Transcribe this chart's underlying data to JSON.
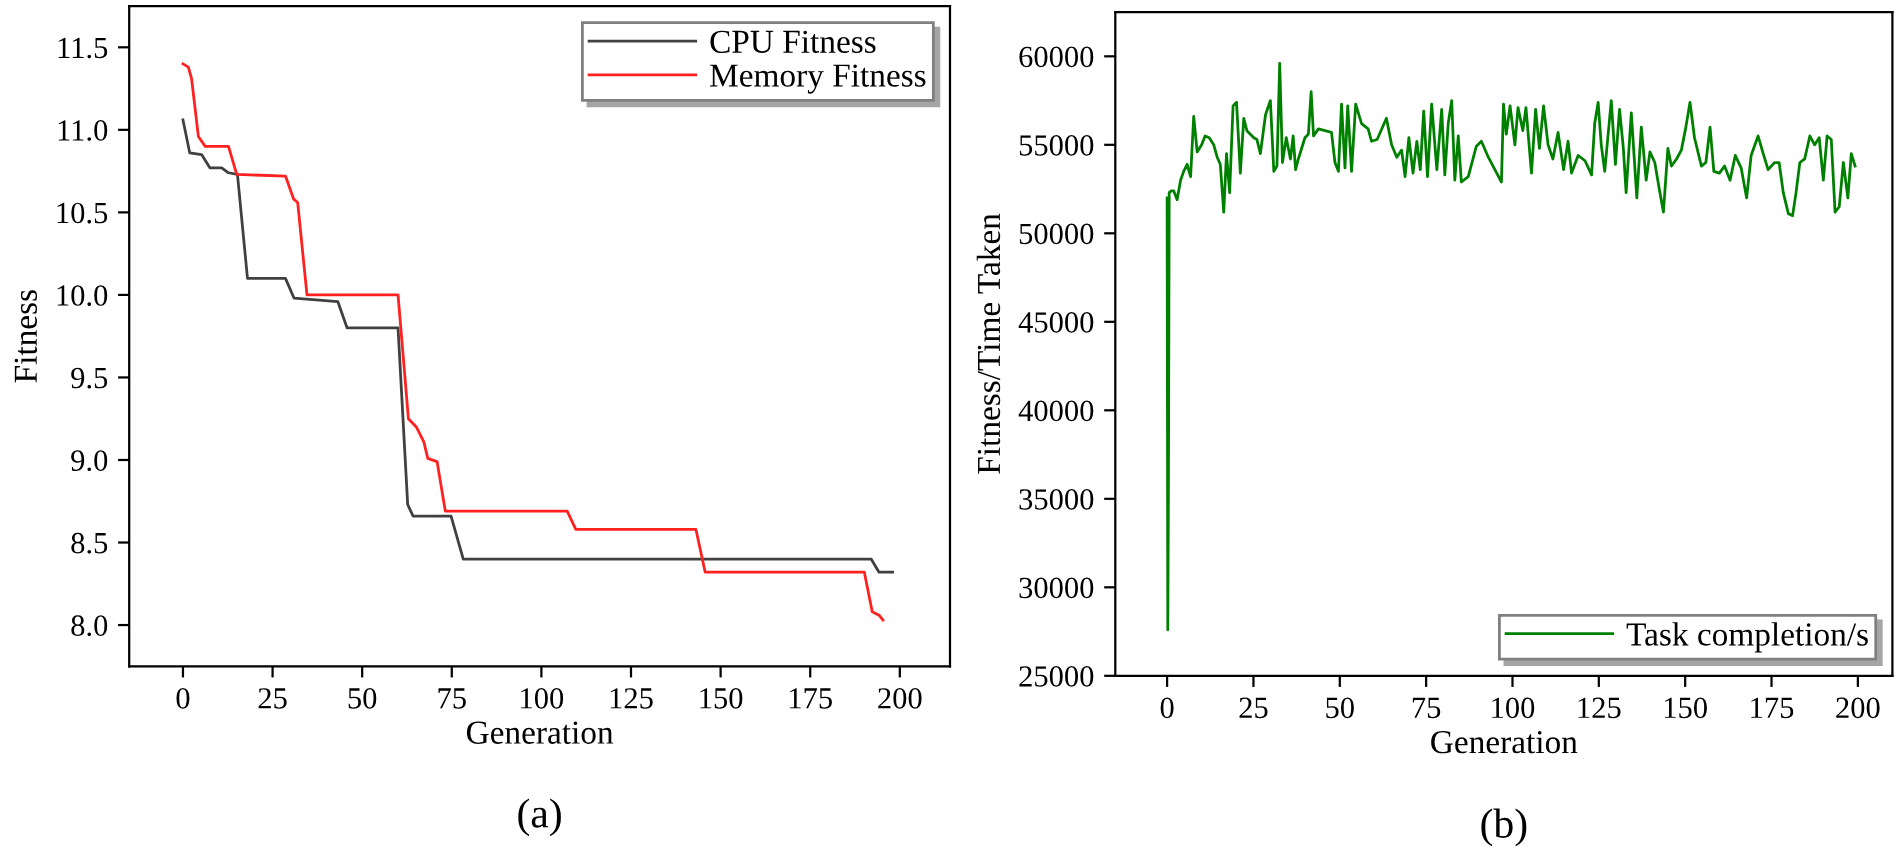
{
  "chart_data": [
    {
      "type": "line",
      "xlabel": "Generation",
      "ylabel": "Fitness",
      "xlim": [
        -15,
        214
      ],
      "ylim": [
        7.75,
        11.75
      ],
      "xticks": [
        0,
        25,
        50,
        75,
        100,
        125,
        150,
        175,
        200
      ],
      "yticks": [
        {
          "value": 8.0,
          "label": "8.0"
        },
        {
          "value": 8.5,
          "label": "8.5"
        },
        {
          "value": 9.0,
          "label": "9.0"
        },
        {
          "value": 9.5,
          "label": "9.5"
        },
        {
          "value": 10.0,
          "label": "10.0"
        },
        {
          "value": 10.5,
          "label": "10.5"
        },
        {
          "value": 11.0,
          "label": "11.0"
        },
        {
          "value": 11.5,
          "label": "11.5"
        }
      ],
      "legend": "top right",
      "grid": false,
      "annotations": [
        "(a)"
      ],
      "series": [
        {
          "name": "CPU Fitness",
          "color": "#404040",
          "x": [
            0,
            1.9,
            5.2,
            7.5,
            10.8,
            12.7,
            15.2,
            18,
            28.6,
            31,
            43.2,
            45.8,
            60,
            62.7,
            64.2,
            74.8,
            78.2,
            192,
            194.2,
            198
          ],
          "values": [
            11.06,
            10.86,
            10.85,
            10.77,
            10.77,
            10.74,
            10.73,
            10.1,
            10.1,
            9.98,
            9.96,
            9.8,
            9.8,
            8.73,
            8.66,
            8.66,
            8.4,
            8.4,
            8.32,
            8.32
          ]
        },
        {
          "name": "Memory Fitness",
          "color": "#ff2020",
          "x": [
            0,
            1.5,
            2.4,
            4.3,
            6.2,
            12.7,
            15,
            28.6,
            30.9,
            32,
            34.6,
            60,
            62.9,
            65.1,
            67.2,
            68.3,
            70.9,
            73.2,
            107.2,
            109.6,
            143.1,
            145.7,
            190.1,
            192.3,
            194.2,
            195.3
          ],
          "values": [
            11.4,
            11.38,
            11.31,
            10.96,
            10.9,
            10.9,
            10.73,
            10.72,
            10.58,
            10.56,
            10.0,
            10.0,
            9.25,
            9.2,
            9.11,
            9.01,
            8.99,
            8.69,
            8.69,
            8.58,
            8.58,
            8.32,
            8.32,
            8.08,
            8.06,
            8.03
          ]
        }
      ]
    },
    {
      "type": "line",
      "xlabel": "Generation",
      "ylabel": "Fitness/Time Taken",
      "xlim": [
        -15,
        210
      ],
      "ylim": [
        25000,
        62500
      ],
      "xticks": [
        0,
        25,
        50,
        75,
        100,
        125,
        150,
        175,
        200
      ],
      "yticks": [
        25000,
        30000,
        35000,
        40000,
        45000,
        50000,
        55000,
        60000
      ],
      "legend": "bottom right",
      "grid": false,
      "annotations": [
        "(b)"
      ],
      "series": [
        {
          "name": "Task completion/s",
          "color": "#008000",
          "x": [
            0,
            0.2,
            0.4,
            0.6,
            1.2,
            1.9,
            2.9,
            3.9,
            4.8,
            5.8,
            6.8,
            7.7,
            8.7,
            10,
            11,
            12.2,
            13.5,
            14.5,
            15.4,
            16.4,
            17.2,
            18.1,
            19.1,
            20.1,
            21.2,
            22.2,
            23.1,
            24.1,
            25.1,
            26,
            27,
            28.5,
            29.9,
            30.9,
            31.8,
            32.6,
            33.4,
            34.5,
            35.7,
            36.5,
            37.2,
            38,
            39.9,
            40.9,
            41.7,
            42.4,
            43.8,
            45.7,
            47.6,
            48.6,
            49.6,
            50.5,
            51.5,
            52.3,
            53.4,
            54.6,
            56.3,
            58.2,
            59.2,
            60.8,
            63.5,
            65,
            66.5,
            67.9,
            68.9,
            70,
            71.2,
            72.3,
            73.3,
            74.3,
            75.4,
            76.6,
            78.1,
            79.5,
            80.4,
            81.4,
            82.4,
            83.3,
            84.3,
            85.2,
            87.2,
            89.5,
            91,
            93,
            94.9,
            96.8,
            97.4,
            98.2,
            99.3,
            100.7,
            101.6,
            103,
            103.9,
            105.5,
            106.7,
            107.8,
            109,
            110.3,
            111.7,
            113.2,
            114.8,
            116.1,
            117.1,
            119,
            121,
            122.9,
            123.8,
            124.8,
            125.7,
            126.7,
            128.6,
            129.8,
            131,
            132.1,
            132.9,
            134.4,
            136,
            137.3,
            138.7,
            139.8,
            141.2,
            142.5,
            143.7,
            145,
            146,
            147.5,
            148.9,
            150.2,
            151.4,
            152.7,
            154.7,
            156,
            157.2,
            158.3,
            159.9,
            161.4,
            163,
            164.5,
            166.2,
            167.8,
            169.1,
            171.1,
            172.6,
            174,
            175.9,
            177.2,
            178.4,
            179.9,
            181.1,
            182.1,
            183.2,
            184.6,
            186.1,
            187.5,
            188.8,
            190,
            191.1,
            192.3,
            193.4,
            194.6,
            195.8,
            197.1,
            198.1,
            199.2
          ],
          "values": [
            52000,
            27600,
            36400,
            52300,
            52400,
            52400,
            51900,
            53000,
            53500,
            53900,
            53200,
            56600,
            54600,
            55000,
            55500,
            55400,
            55000,
            54300,
            53900,
            51200,
            54500,
            52300,
            57200,
            57400,
            53400,
            56500,
            55800,
            55600,
            55400,
            55300,
            54500,
            56700,
            57500,
            53500,
            53800,
            59600,
            54000,
            55400,
            54200,
            55500,
            53600,
            54200,
            55400,
            55600,
            58000,
            55500,
            55900,
            55800,
            55700,
            54000,
            53500,
            57300,
            53700,
            57200,
            53500,
            57300,
            56200,
            55900,
            55200,
            55300,
            56500,
            55000,
            54300,
            54700,
            53200,
            55400,
            53400,
            55200,
            53600,
            56900,
            53200,
            57300,
            53600,
            57000,
            53300,
            56200,
            57500,
            53000,
            55500,
            52900,
            53200,
            54900,
            55200,
            54300,
            53600,
            52900,
            57300,
            55600,
            57200,
            55000,
            57100,
            55800,
            57100,
            53400,
            57000,
            54800,
            57200,
            55000,
            54200,
            55700,
            53600,
            55200,
            53400,
            54400,
            54100,
            53300,
            56200,
            57400,
            55000,
            53500,
            57500,
            53900,
            57000,
            54800,
            52300,
            56800,
            52000,
            56000,
            53000,
            54600,
            54000,
            52500,
            51200,
            54800,
            53800,
            54200,
            54700,
            56000,
            57400,
            55400,
            53800,
            54000,
            56000,
            53500,
            53400,
            53800,
            53000,
            54400,
            53700,
            52000,
            54400,
            55500,
            54500,
            53600,
            54000,
            54000,
            52300,
            51100,
            51000,
            52300,
            54000,
            54200,
            55500,
            55000,
            55400,
            53000,
            55500,
            55300,
            51200,
            51500,
            54000,
            52000,
            54500,
            53800
          ]
        }
      ]
    }
  ]
}
